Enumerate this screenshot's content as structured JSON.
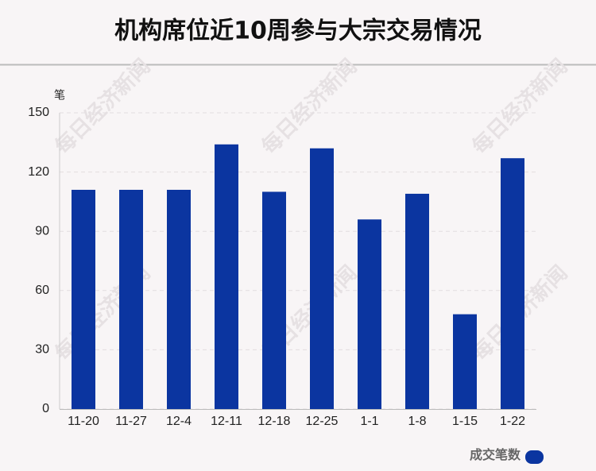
{
  "chart_data": {
    "type": "bar",
    "title": "机构席位近10周参与大宗交易情况",
    "y_unit": "笔",
    "watermark": "每日经济新闻",
    "categories": [
      "11-20",
      "11-27",
      "12-4",
      "12-11",
      "12-18",
      "12-25",
      "1-1",
      "1-8",
      "1-15",
      "1-22"
    ],
    "series": [
      {
        "name": "成交笔数",
        "color": "#0b35a0",
        "values": [
          111,
          111,
          111,
          134,
          110,
          132,
          96,
          109,
          48,
          127
        ]
      }
    ],
    "ylim": [
      0,
      150
    ],
    "yticks": [
      0,
      30,
      60,
      90,
      120,
      150
    ],
    "grid": true,
    "legend": "bottom-right"
  }
}
